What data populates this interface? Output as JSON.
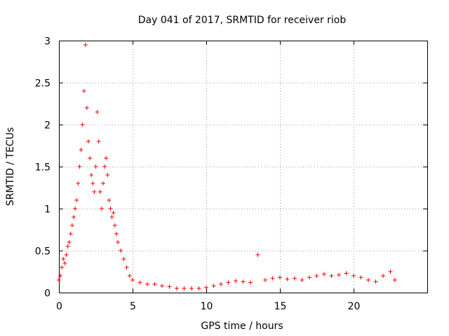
{
  "chart_data": {
    "type": "scatter",
    "title": "Day 041 of 2017, SRMTID for receiver riob",
    "xlabel": "GPS time / hours",
    "ylabel": "SRMTID / TECUs",
    "xlim": [
      0,
      25
    ],
    "ylim": [
      0,
      3
    ],
    "xticks": [
      0,
      5,
      10,
      15,
      20
    ],
    "xtick_labels": [
      "0",
      "5",
      "10",
      "15",
      "20"
    ],
    "yticks": [
      0,
      0.5,
      1,
      1.5,
      2,
      2.5,
      3
    ],
    "ytick_labels": [
      "0",
      "0.5",
      "1",
      "1.5",
      "2",
      "2.5",
      "3"
    ],
    "grid": true,
    "marker": "+",
    "color": "#ff0000",
    "series": [
      {
        "name": "SRMTID",
        "x": [
          0.0,
          0.1,
          0.2,
          0.3,
          0.4,
          0.5,
          0.6,
          0.7,
          0.8,
          0.9,
          1.0,
          1.1,
          1.2,
          1.3,
          1.4,
          1.5,
          1.6,
          1.7,
          1.8,
          1.9,
          2.0,
          2.1,
          2.2,
          2.3,
          2.4,
          2.5,
          2.6,
          2.7,
          2.8,
          2.9,
          3.0,
          3.1,
          3.2,
          3.3,
          3.4,
          3.5,
          3.6,
          3.7,
          3.8,
          3.9,
          4.0,
          4.2,
          4.4,
          4.6,
          4.8,
          5.0,
          5.5,
          6.0,
          6.5,
          7.0,
          7.5,
          8.0,
          8.5,
          9.0,
          9.5,
          10.0,
          10.5,
          11.0,
          11.5,
          12.0,
          12.5,
          13.0,
          13.5,
          14.0,
          14.5,
          15.0,
          15.5,
          16.0,
          16.5,
          17.0,
          17.5,
          18.0,
          18.5,
          19.0,
          19.5,
          20.0,
          20.5,
          21.0,
          21.5,
          22.0,
          22.5,
          22.8
        ],
        "y": [
          0.15,
          0.2,
          0.3,
          0.4,
          0.35,
          0.45,
          0.55,
          0.6,
          0.7,
          0.8,
          0.9,
          1.0,
          1.1,
          1.3,
          1.5,
          1.7,
          2.0,
          2.4,
          2.95,
          2.2,
          1.8,
          1.6,
          1.4,
          1.3,
          1.2,
          1.5,
          2.15,
          1.8,
          1.2,
          1.0,
          1.3,
          1.5,
          1.6,
          1.4,
          1.1,
          1.0,
          0.9,
          0.95,
          0.8,
          0.7,
          0.6,
          0.5,
          0.4,
          0.3,
          0.2,
          0.15,
          0.12,
          0.1,
          0.1,
          0.08,
          0.07,
          0.05,
          0.05,
          0.05,
          0.05,
          0.06,
          0.08,
          0.1,
          0.12,
          0.14,
          0.13,
          0.12,
          0.45,
          0.15,
          0.17,
          0.18,
          0.16,
          0.17,
          0.15,
          0.18,
          0.2,
          0.22,
          0.2,
          0.21,
          0.23,
          0.2,
          0.18,
          0.15,
          0.13,
          0.2,
          0.25,
          0.15
        ]
      }
    ]
  }
}
